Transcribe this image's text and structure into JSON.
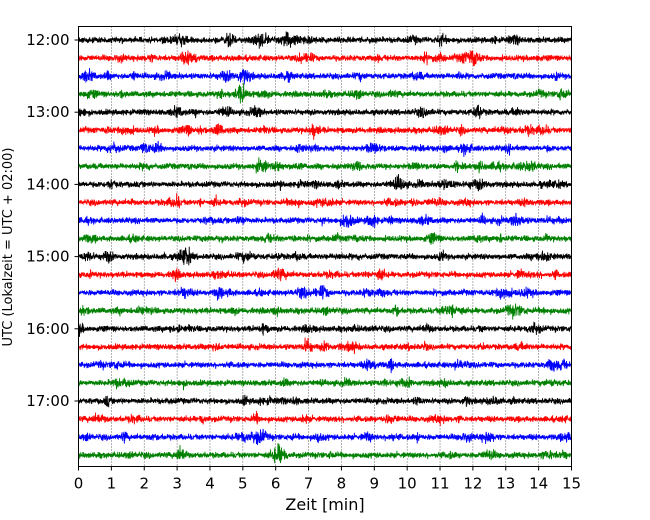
{
  "chart_data": {
    "type": "line",
    "title": "",
    "xlabel": "Zeit  [min]",
    "ylabel": "UTC (Lokalzeit = UTC + 02:00)",
    "xlim": [
      0,
      15
    ],
    "x_ticks": [
      0,
      1,
      2,
      3,
      4,
      5,
      6,
      7,
      8,
      9,
      10,
      11,
      12,
      13,
      14,
      15
    ],
    "grid": "vertical dotted lines at each minute",
    "y_tick_labels": [
      "12:00",
      "13:00",
      "14:00",
      "15:00",
      "16:00",
      "17:00"
    ],
    "trace_minutes": 15,
    "trace_start_times": [
      "12:00",
      "12:15",
      "12:30",
      "12:45",
      "13:00",
      "13:15",
      "13:30",
      "13:45",
      "14:00",
      "14:15",
      "14:30",
      "14:45",
      "15:00",
      "15:15",
      "15:30",
      "15:45",
      "16:00",
      "16:15",
      "16:30",
      "16:45",
      "17:00",
      "17:15",
      "17:30",
      "17:45"
    ],
    "trace_colors": [
      "#000000",
      "#ff0000",
      "#0000ff",
      "#008000"
    ]
  }
}
